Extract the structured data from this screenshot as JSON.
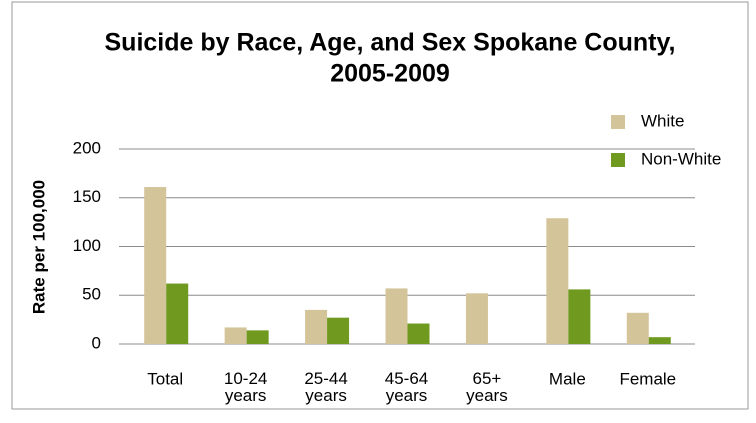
{
  "chart_data": {
    "type": "bar",
    "title": [
      "Suicide by Race, Age, and Sex Spokane County,",
      "2005-2009"
    ],
    "y_label": "Rate per 100,000",
    "categories": [
      "Total",
      "10-24 years",
      "25-44 years",
      "45-64 years",
      "65+ years",
      "Male",
      "Female"
    ],
    "series": [
      {
        "name": "White",
        "color": "#d4c49a",
        "values": [
          161,
          17,
          35,
          57,
          52,
          129,
          32
        ]
      },
      {
        "name": "Non-White",
        "color": "#6f9a1f",
        "values": [
          62,
          14,
          27,
          21,
          null,
          56,
          7
        ]
      }
    ],
    "ylim": [
      0,
      200
    ],
    "yticks": [
      0,
      50,
      100,
      150,
      200
    ],
    "grid": true,
    "legend": "right"
  }
}
